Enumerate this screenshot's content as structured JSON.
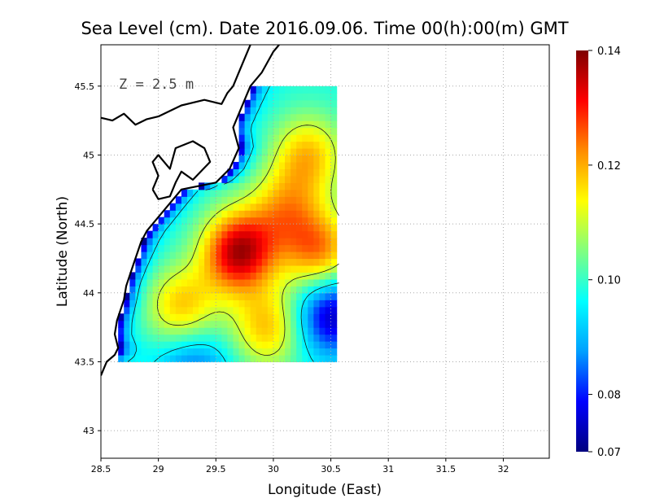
{
  "chart_data": {
    "type": "heatmap",
    "title": "Sea Level (cm). Date 2016.09.06. Time 00(h):00(m) GMT",
    "xlabel": "Longitude (East)",
    "ylabel": "Latitude (North)",
    "xlim": [
      28.5,
      32.4
    ],
    "ylim": [
      42.8,
      45.8
    ],
    "x_ticks": [
      28.5,
      29,
      29.5,
      30,
      30.5,
      31,
      31.5,
      32
    ],
    "x_tick_labels": [
      "28.5",
      "29",
      "29.5",
      "30",
      "30.5",
      "31",
      "31.5",
      "32"
    ],
    "y_ticks": [
      43,
      43.5,
      44,
      44.5,
      45,
      45.5
    ],
    "y_tick_labels": [
      "43",
      "43.5",
      "44",
      "44.5",
      "45",
      "45.5"
    ],
    "grid": true,
    "annotation": "Z = 2.5 m",
    "colorbar": {
      "min": 0.07,
      "max": 0.14,
      "ticks": [
        "0.07",
        "0.08",
        "0.10",
        "0.12",
        "0.14"
      ],
      "tick_values": [
        0.07,
        0.08,
        0.1,
        0.12,
        0.14
      ],
      "colors": [
        "#00007f",
        "#0000ff",
        "#00a0ff",
        "#00ffff",
        "#80ff80",
        "#ffff00",
        "#ff8c00",
        "#ff0000",
        "#7f0000"
      ]
    },
    "field": {
      "lon_range": [
        28.65,
        30.55
      ],
      "lat_range": [
        43.5,
        45.5
      ],
      "background": 0.098,
      "features": [
        {
          "lon": 29.7,
          "lat": 44.3,
          "value": 0.038
        },
        {
          "lon": 30.4,
          "lat": 44.3,
          "value": 0.025
        },
        {
          "lon": 29.2,
          "lat": 43.9,
          "value": 0.02
        },
        {
          "lon": 29.95,
          "lat": 43.75,
          "value": 0.02
        },
        {
          "lon": 30.3,
          "lat": 45.0,
          "value": 0.02
        },
        {
          "lon": 30.1,
          "lat": 44.6,
          "value": 0.018
        },
        {
          "lon": 30.5,
          "lat": 43.85,
          "value": -0.025
        },
        {
          "lon": 29.3,
          "lat": 43.45,
          "value": -0.015
        }
      ],
      "contour_levels": [
        0.095,
        0.11
      ]
    },
    "coast_west": [
      [
        28.5,
        43.4
      ],
      [
        28.55,
        43.5
      ],
      [
        28.62,
        43.55
      ],
      [
        28.65,
        43.6
      ],
      [
        28.62,
        43.7
      ],
      [
        28.64,
        43.8
      ],
      [
        28.7,
        43.95
      ],
      [
        28.72,
        44.05
      ],
      [
        28.78,
        44.2
      ],
      [
        28.85,
        44.37
      ],
      [
        28.9,
        44.45
      ],
      [
        29.05,
        44.6
      ],
      [
        29.2,
        44.75
      ],
      [
        29.5,
        44.8
      ],
      [
        29.62,
        44.9
      ],
      [
        29.7,
        45.05
      ],
      [
        29.65,
        45.2
      ],
      [
        29.75,
        45.4
      ],
      [
        29.8,
        45.5
      ],
      [
        29.9,
        45.6
      ],
      [
        30.0,
        45.75
      ],
      [
        30.05,
        45.8
      ]
    ],
    "coast_north": [
      [
        28.5,
        45.27
      ],
      [
        28.6,
        45.25
      ],
      [
        28.7,
        45.3
      ],
      [
        28.8,
        45.22
      ],
      [
        28.9,
        45.26
      ],
      [
        29.0,
        45.28
      ],
      [
        29.2,
        45.36
      ],
      [
        29.4,
        45.4
      ],
      [
        29.55,
        45.37
      ],
      [
        29.6,
        45.45
      ],
      [
        29.65,
        45.5
      ],
      [
        29.7,
        45.6
      ],
      [
        29.75,
        45.7
      ],
      [
        29.8,
        45.8
      ]
    ],
    "coast_lagoon": [
      [
        28.95,
        44.75
      ],
      [
        29.0,
        44.85
      ],
      [
        28.95,
        44.95
      ],
      [
        29.0,
        45.0
      ],
      [
        29.1,
        44.9
      ],
      [
        29.15,
        45.05
      ],
      [
        29.3,
        45.1
      ],
      [
        29.4,
        45.05
      ],
      [
        29.45,
        44.95
      ],
      [
        29.3,
        44.82
      ],
      [
        29.2,
        44.88
      ],
      [
        29.15,
        44.8
      ],
      [
        29.1,
        44.7
      ],
      [
        29.0,
        44.68
      ],
      [
        28.95,
        44.75
      ]
    ]
  }
}
